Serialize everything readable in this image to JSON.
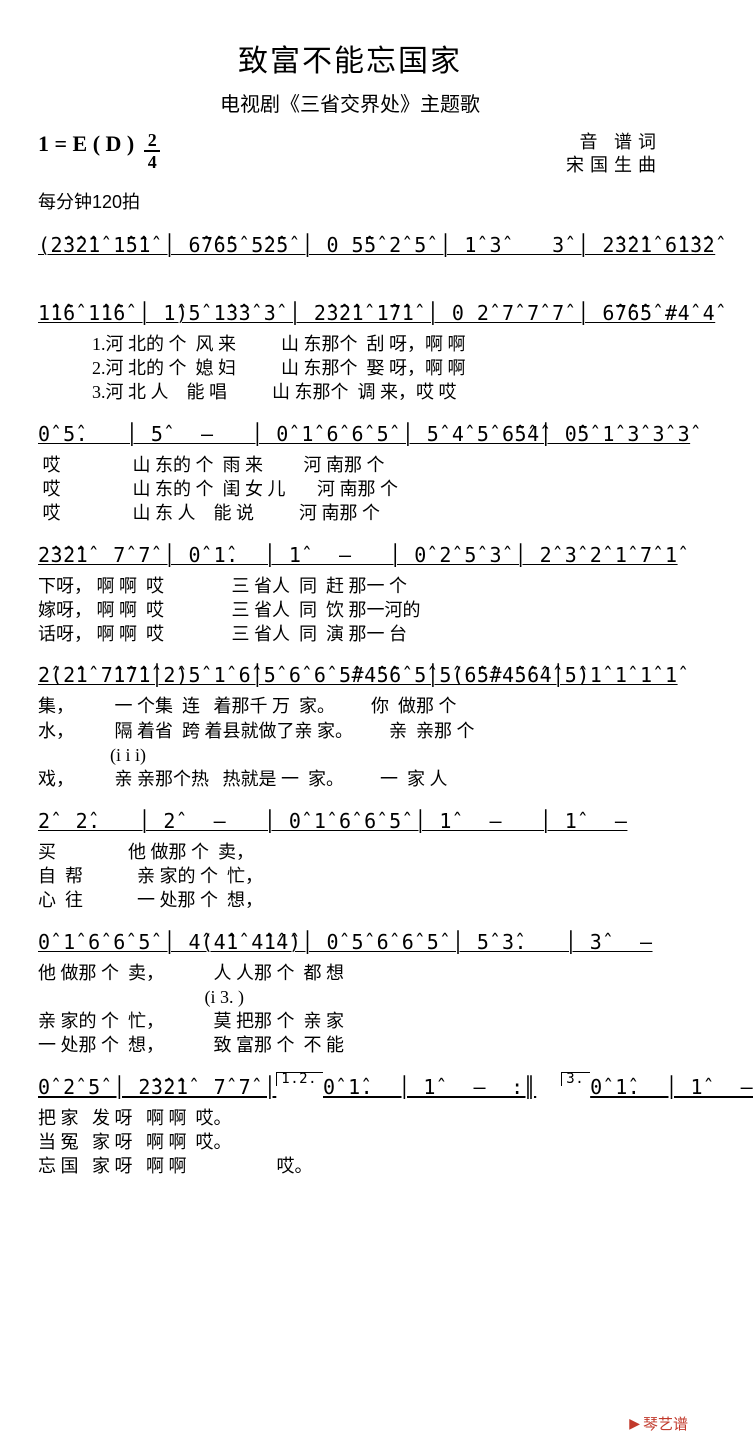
{
  "title": "致富不能忘国家",
  "subtitle": "电视剧《三省交界处》主题歌",
  "key": "1 = E ( D )",
  "time_sig": {
    "num": "2",
    "den": "4"
  },
  "credits": {
    "lyricist": "音  谱词",
    "composer": "宋国生曲"
  },
  "tempo": "每分钟120拍",
  "lines": [
    {
      "notes": "(2̂3̂2̂1̂ 1̂5̂1̂ │ 6̂7̂6̂5̂ 5̂2̂5̂ │ 0 5̂5̂ 2̂ 5̂ │ 1̂ 3̂    3̂ │ 2̂3̂2̂1̂ 6̂1̂3̂2̂",
      "lyrics": []
    },
    {
      "notes": "1̂1̂6̂ 1̂1̂6̂ │ 1̂)5̂ 1̂3̂3̂ 3̂ │ 2̂3̂2̂1̂ 1̂7̂1̂ │ 0 2̂ 7̂ 7̂ 7̂ │ 6̂7̂6̂5̂ #4̂ 4̂",
      "lyrics": [
        "            1.河 北的 个  风 来          山 东那个  刮 呀，啊 啊",
        "            2.河 北的 个  媳 妇          山 东那个  娶 呀，啊 啊",
        "            3.河 北 人    能 唱          山 东那个  调 来，哎 哎"
      ]
    },
    {
      "notes": "0̂ 5̂.   │ 5̂   —   │ 0̂ 1̂ 6̂ 6̂ 5̂ │ 5̂ 4̂ 5̂ 6̂5̂4̂│ 0̂5̂ 1̂ 3̂ 3̂ 3̂",
      "lyrics": [
        " 哎                山 东的 个  雨 来         河 南那 个",
        " 哎                山 东的 个  闺 女 儿       河 南那 个",
        " 哎                山 东 人    能 说          河 南那 个"
      ]
    },
    {
      "notes": "2̂3̂2̂1̂  7̂ 7̂ │ 0̂ 1̂.  │ 1̂   —   │ 0̂ 2̂ 5̂ 3̂ │ 2̂ 3̂ 2̂ 1̂ 7̂ 1̂",
      "lyrics": [
        "下呀， 啊 啊  哎               三 省人  同  赶 那一 个",
        "嫁呀， 啊 啊  哎               三 省人  同  饮 那一河的",
        "话呀， 啊 啊  哎               三 省人  同  演 那一 台"
      ]
    },
    {
      "notes": "2̂(2̂1̂ 7̂1̂7̂1̂│2̂)5̂ 1̂ 6̂│5̂ 6̂ 6̂ 5̂#4̂5̂6̂ 5̂│5̂(6̂5̂#4̂5̂6̂4̂│5̂)1̂ 1̂ 1̂ 1̂",
      "lyrics": [
        "集，         一 个集  连   着那千 万  家。        你  做那 个",
        "水，         隔 着省  跨 着县就做了亲 家。        亲  亲那 个",
        "                (i i i)",
        "戏，         亲 亲那个热   热就是 一  家。        一  家 人"
      ]
    },
    {
      "notes": "2̂  2̂.   │ 2̂   —   │ 0̂ 1̂ 6̂ 6̂ 5̂ │ 1̂   —   │ 1̂   —",
      "lyrics": [
        "买                他 做那 个  卖，",
        "自  帮            亲 家的 个  忙，",
        "心  往            一 处那 个  想，"
      ]
    },
    {
      "notes": "0̂ 1̂ 6̂ 6̂ 5̂ │ 4̂(4̂1̂ 4̂1̂4̂)│ 0̂ 5̂ 6̂ 6̂ 5̂ │ 5̂ 3̂.   │ 3̂   —",
      "lyrics": [
        "他 做那 个  卖，           人 人那 个  都 想",
        "                                     (i 3. )",
        "亲 家的 个  忙，           莫 把那 个  亲 家",
        "一 处那 个  想，           致 富那 个  不 能"
      ]
    },
    {
      "notes_pre_ending": "0̂ 2̂ 5̂ │ 2̂3̂2̂1̂  7̂ 7̂ │",
      "ending1_label": "1.2.",
      "ending1_notes": "0̂ 1̂.  │ 1̂   —  :║",
      "ending2_label": "3.",
      "ending2_notes": "0̂ 1̂.  │ 1̂   —",
      "lyrics": [
        "把 家   发 呀   啊 啊  哎。",
        "当 冤   家 呀   啊 啊  哎。",
        "忘 国   家 呀   啊 啊                    哎。"
      ]
    }
  ],
  "watermark": "琴艺谱",
  "colors": {
    "text": "#000000",
    "bg": "#ffffff",
    "watermark": "#c1392b"
  }
}
